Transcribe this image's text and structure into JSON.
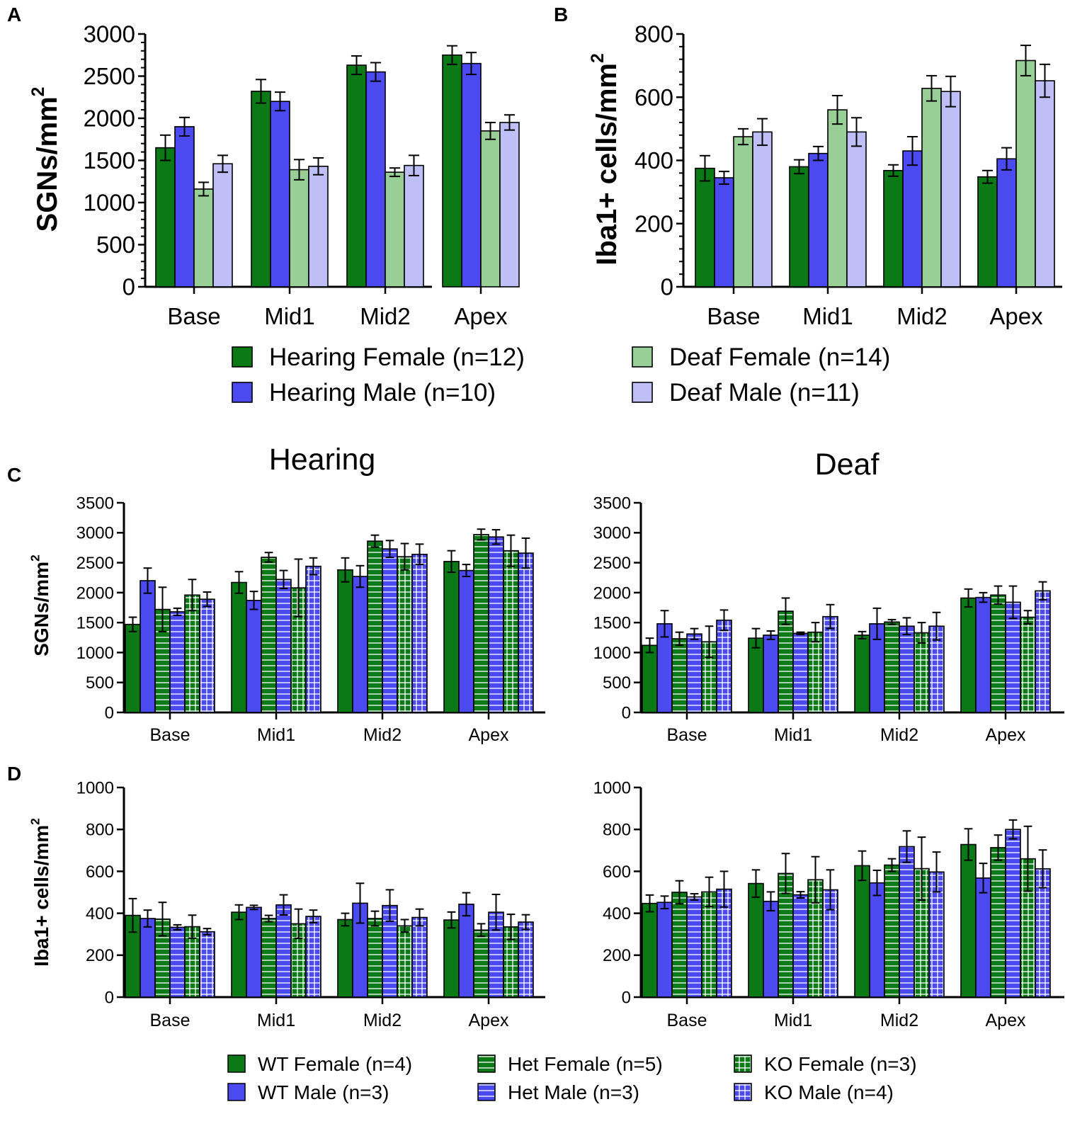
{
  "figure": {
    "panel_labels": [
      "A",
      "B",
      "C",
      "D"
    ],
    "titles": {
      "hearing": "Hearing",
      "deaf": "Deaf"
    }
  },
  "colors": {
    "dark_green": "#0b7a16",
    "blue": "#4a4af0",
    "light_green": "#97cf97",
    "light_blue": "#bfbff8",
    "hatch": "#ffffff",
    "axis": "#000000"
  },
  "legend_top": [
    {
      "label": "Hearing Female (n=12)",
      "color": "dark_green"
    },
    {
      "label": "Hearing Male (n=10)",
      "color": "blue"
    },
    {
      "label": "Deaf Female (n=14)",
      "color": "light_green"
    },
    {
      "label": "Deaf Male (n=11)",
      "color": "light_blue"
    }
  ],
  "legend_bottom": [
    {
      "label": "WT Female (n=4)",
      "color": "dark_green",
      "pattern": "none"
    },
    {
      "label": "WT Male (n=3)",
      "color": "blue",
      "pattern": "none"
    },
    {
      "label": "Het Female (n=5)",
      "color": "dark_green",
      "pattern": "hlines"
    },
    {
      "label": "Het Male (n=3)",
      "color": "blue",
      "pattern": "hlines"
    },
    {
      "label": "KO Female (n=3)",
      "color": "dark_green",
      "pattern": "grid"
    },
    {
      "label": "KO Male (n=4)",
      "color": "blue",
      "pattern": "grid"
    }
  ],
  "chart_data": [
    {
      "id": "A",
      "type": "bar",
      "ylabel": "SGNs/mm",
      "ylabel_sup": "2",
      "ylim": [
        0,
        3000
      ],
      "yticks": [
        "0",
        "500",
        "1000",
        "1500",
        "2000",
        "2500",
        "3000"
      ],
      "categories": [
        "Base",
        "Mid1",
        "Mid2",
        "Apex"
      ],
      "series": [
        {
          "name": "Hearing Female (n=12)",
          "color": "dark_green",
          "pattern": "none",
          "values": [
            1650,
            2320,
            2630,
            2750
          ],
          "errors": [
            150,
            140,
            110,
            110
          ]
        },
        {
          "name": "Hearing Male (n=10)",
          "color": "blue",
          "pattern": "none",
          "values": [
            1900,
            2200,
            2550,
            2650
          ],
          "errors": [
            110,
            110,
            110,
            130
          ]
        },
        {
          "name": "Deaf Female (n=14)",
          "color": "light_green",
          "pattern": "none",
          "values": [
            1160,
            1390,
            1360,
            1850
          ],
          "errors": [
            80,
            120,
            50,
            100
          ]
        },
        {
          "name": "Deaf Male (n=11)",
          "color": "light_blue",
          "pattern": "none",
          "values": [
            1460,
            1430,
            1440,
            1950
          ],
          "errors": [
            100,
            100,
            120,
            90
          ]
        }
      ]
    },
    {
      "id": "B",
      "type": "bar",
      "ylabel": "Iba1+ cells/mm",
      "ylabel_sup": "2",
      "ylim": [
        0,
        800
      ],
      "yticks": [
        "0",
        "200",
        "400",
        "600",
        "800"
      ],
      "categories": [
        "Base",
        "Mid1",
        "Mid2",
        "Apex"
      ],
      "series": [
        {
          "name": "Hearing Female (n=12)",
          "color": "dark_green",
          "pattern": "none",
          "values": [
            375,
            380,
            368,
            348
          ],
          "errors": [
            40,
            22,
            18,
            20
          ]
        },
        {
          "name": "Hearing Male (n=10)",
          "color": "blue",
          "pattern": "none",
          "values": [
            345,
            422,
            430,
            405
          ],
          "errors": [
            20,
            22,
            45,
            35
          ]
        },
        {
          "name": "Deaf Female (n=14)",
          "color": "light_green",
          "pattern": "none",
          "values": [
            475,
            560,
            628,
            716
          ],
          "errors": [
            25,
            45,
            40,
            48
          ]
        },
        {
          "name": "Deaf Male (n=11)",
          "color": "light_blue",
          "pattern": "none",
          "values": [
            490,
            490,
            618,
            652
          ],
          "errors": [
            42,
            45,
            48,
            52
          ]
        }
      ]
    },
    {
      "id": "C-hearing",
      "type": "bar",
      "ylabel": "SGNs/mm",
      "ylabel_sup": "2",
      "ylim": [
        0,
        3500
      ],
      "yticks": [
        "0",
        "500",
        "1000",
        "1500",
        "2000",
        "2500",
        "3000",
        "3500"
      ],
      "categories": [
        "Base",
        "Mid1",
        "Mid2",
        "Apex"
      ],
      "series": [
        {
          "name": "WT Female (n=4)",
          "color": "dark_green",
          "pattern": "none",
          "values": [
            1470,
            2170,
            2380,
            2520
          ],
          "errors": [
            120,
            180,
            200,
            180
          ]
        },
        {
          "name": "WT Male (n=3)",
          "color": "blue",
          "pattern": "none",
          "values": [
            2200,
            1870,
            2270,
            2370
          ],
          "errors": [
            210,
            150,
            180,
            100
          ]
        },
        {
          "name": "Het Female (n=5)",
          "color": "dark_green",
          "pattern": "hlines",
          "values": [
            1720,
            2590,
            2860,
            2970
          ],
          "errors": [
            370,
            80,
            100,
            90
          ]
        },
        {
          "name": "Het Male (n=3)",
          "color": "blue",
          "pattern": "hlines",
          "values": [
            1680,
            2220,
            2730,
            2930
          ],
          "errors": [
            60,
            150,
            140,
            120
          ]
        },
        {
          "name": "KO Female (n=3)",
          "color": "dark_green",
          "pattern": "grid",
          "values": [
            1960,
            2080,
            2600,
            2700
          ],
          "errors": [
            260,
            480,
            220,
            260
          ]
        },
        {
          "name": "KO Male (n=4)",
          "color": "blue",
          "pattern": "grid",
          "values": [
            1890,
            2440,
            2640,
            2660
          ],
          "errors": [
            120,
            140,
            170,
            250
          ]
        }
      ]
    },
    {
      "id": "C-deaf",
      "type": "bar",
      "ylabel": "",
      "ylabel_sup": "",
      "ylim": [
        0,
        3500
      ],
      "yticks": [
        "0",
        "500",
        "1000",
        "1500",
        "2000",
        "2500",
        "3000",
        "3500"
      ],
      "categories": [
        "Base",
        "Mid1",
        "Mid2",
        "Apex"
      ],
      "series": [
        {
          "name": "WT Female (n=4)",
          "color": "dark_green",
          "pattern": "none",
          "values": [
            1120,
            1240,
            1290,
            1910
          ],
          "errors": [
            120,
            160,
            60,
            150
          ]
        },
        {
          "name": "WT Male (n=3)",
          "color": "blue",
          "pattern": "none",
          "values": [
            1480,
            1290,
            1480,
            1920
          ],
          "errors": [
            220,
            70,
            260,
            80
          ]
        },
        {
          "name": "Het Female (n=5)",
          "color": "dark_green",
          "pattern": "hlines",
          "values": [
            1230,
            1690,
            1510,
            1960
          ],
          "errors": [
            110,
            220,
            40,
            150
          ]
        },
        {
          "name": "Het Male (n=3)",
          "color": "blue",
          "pattern": "hlines",
          "values": [
            1310,
            1320,
            1440,
            1840
          ],
          "errors": [
            90,
            20,
            140,
            270
          ]
        },
        {
          "name": "KO Female (n=3)",
          "color": "dark_green",
          "pattern": "grid",
          "values": [
            1180,
            1340,
            1330,
            1590
          ],
          "errors": [
            260,
            160,
            170,
            110
          ]
        },
        {
          "name": "KO Male (n=4)",
          "color": "blue",
          "pattern": "grid",
          "values": [
            1540,
            1600,
            1440,
            2030
          ],
          "errors": [
            170,
            200,
            230,
            150
          ]
        }
      ]
    },
    {
      "id": "D-hearing",
      "type": "bar",
      "ylabel": "Iba1+ cells/mm",
      "ylabel_sup": "2",
      "ylim": [
        0,
        1000
      ],
      "yticks": [
        "0",
        "200",
        "400",
        "600",
        "800",
        "1000"
      ],
      "categories": [
        "Base",
        "Mid1",
        "Mid2",
        "Apex"
      ],
      "series": [
        {
          "name": "WT Female (n=4)",
          "color": "dark_green",
          "pattern": "none",
          "values": [
            390,
            405,
            370,
            368
          ],
          "errors": [
            80,
            35,
            30,
            38
          ]
        },
        {
          "name": "WT Male (n=3)",
          "color": "blue",
          "pattern": "none",
          "values": [
            375,
            428,
            448,
            443
          ],
          "errors": [
            40,
            10,
            95,
            55
          ]
        },
        {
          "name": "Het Female (n=5)",
          "color": "dark_green",
          "pattern": "hlines",
          "values": [
            372,
            375,
            375,
            320
          ],
          "errors": [
            80,
            15,
            35,
            30
          ]
        },
        {
          "name": "Het Male (n=3)",
          "color": "blue",
          "pattern": "hlines",
          "values": [
            333,
            440,
            437,
            405
          ],
          "errors": [
            12,
            48,
            75,
            85
          ]
        },
        {
          "name": "KO Female (n=3)",
          "color": "dark_green",
          "pattern": "grid",
          "values": [
            336,
            350,
            340,
            335
          ],
          "errors": [
            55,
            70,
            30,
            60
          ]
        },
        {
          "name": "KO Male (n=4)",
          "color": "blue",
          "pattern": "grid",
          "values": [
            312,
            385,
            380,
            358
          ],
          "errors": [
            15,
            30,
            40,
            35
          ]
        }
      ]
    },
    {
      "id": "D-deaf",
      "type": "bar",
      "ylabel": "",
      "ylabel_sup": "",
      "ylim": [
        0,
        1000
      ],
      "yticks": [
        "0",
        "200",
        "400",
        "600",
        "800",
        "1000"
      ],
      "categories": [
        "Base",
        "Mid1",
        "Mid2",
        "Apex"
      ],
      "series": [
        {
          "name": "WT Female (n=4)",
          "color": "dark_green",
          "pattern": "none",
          "values": [
            447,
            542,
            627,
            728
          ],
          "errors": [
            40,
            65,
            70,
            75
          ]
        },
        {
          "name": "WT Male (n=3)",
          "color": "blue",
          "pattern": "none",
          "values": [
            452,
            457,
            545,
            568
          ],
          "errors": [
            30,
            45,
            60,
            70
          ]
        },
        {
          "name": "Het Female (n=5)",
          "color": "dark_green",
          "pattern": "hlines",
          "values": [
            500,
            590,
            630,
            713
          ],
          "errors": [
            55,
            95,
            30,
            60
          ]
        },
        {
          "name": "Het Male (n=3)",
          "color": "blue",
          "pattern": "hlines",
          "values": [
            478,
            488,
            718,
            800
          ],
          "errors": [
            15,
            15,
            75,
            45
          ]
        },
        {
          "name": "KO Female (n=3)",
          "color": "dark_green",
          "pattern": "grid",
          "values": [
            502,
            560,
            613,
            660
          ],
          "errors": [
            70,
            110,
            150,
            155
          ]
        },
        {
          "name": "KO Male (n=4)",
          "color": "blue",
          "pattern": "grid",
          "values": [
            515,
            512,
            597,
            612
          ],
          "errors": [
            85,
            95,
            95,
            90
          ]
        }
      ]
    }
  ]
}
